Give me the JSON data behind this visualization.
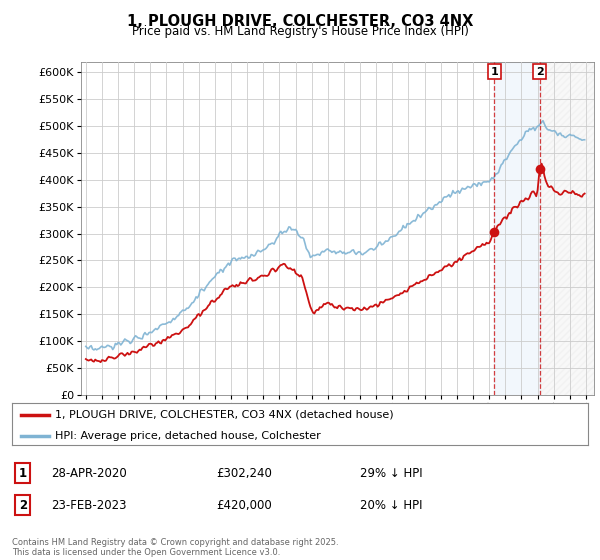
{
  "title": "1, PLOUGH DRIVE, COLCHESTER, CO3 4NX",
  "subtitle": "Price paid vs. HM Land Registry's House Price Index (HPI)",
  "ylim": [
    0,
    620000
  ],
  "yticks": [
    0,
    50000,
    100000,
    150000,
    200000,
    250000,
    300000,
    350000,
    400000,
    450000,
    500000,
    550000,
    600000
  ],
  "xlim_start": 1994.7,
  "xlim_end": 2026.5,
  "hpi_color": "#7fb3d3",
  "price_color": "#cc1111",
  "marker1_date": 2020.32,
  "marker1_price": 302240,
  "marker2_date": 2023.14,
  "marker2_price": 420000,
  "marker1_label": "28-APR-2020",
  "marker1_price_str": "£302,240",
  "marker1_hpi_str": "29% ↓ HPI",
  "marker2_label": "23-FEB-2023",
  "marker2_price_str": "£420,000",
  "marker2_hpi_str": "20% ↓ HPI",
  "legend_line1": "1, PLOUGH DRIVE, COLCHESTER, CO3 4NX (detached house)",
  "legend_line2": "HPI: Average price, detached house, Colchester",
  "footer": "Contains HM Land Registry data © Crown copyright and database right 2025.\nThis data is licensed under the Open Government Licence v3.0.",
  "background_color": "#ffffff",
  "grid_color": "#cccccc",
  "shade_color": "#ddeeff",
  "hatch_color": "#cccccc"
}
